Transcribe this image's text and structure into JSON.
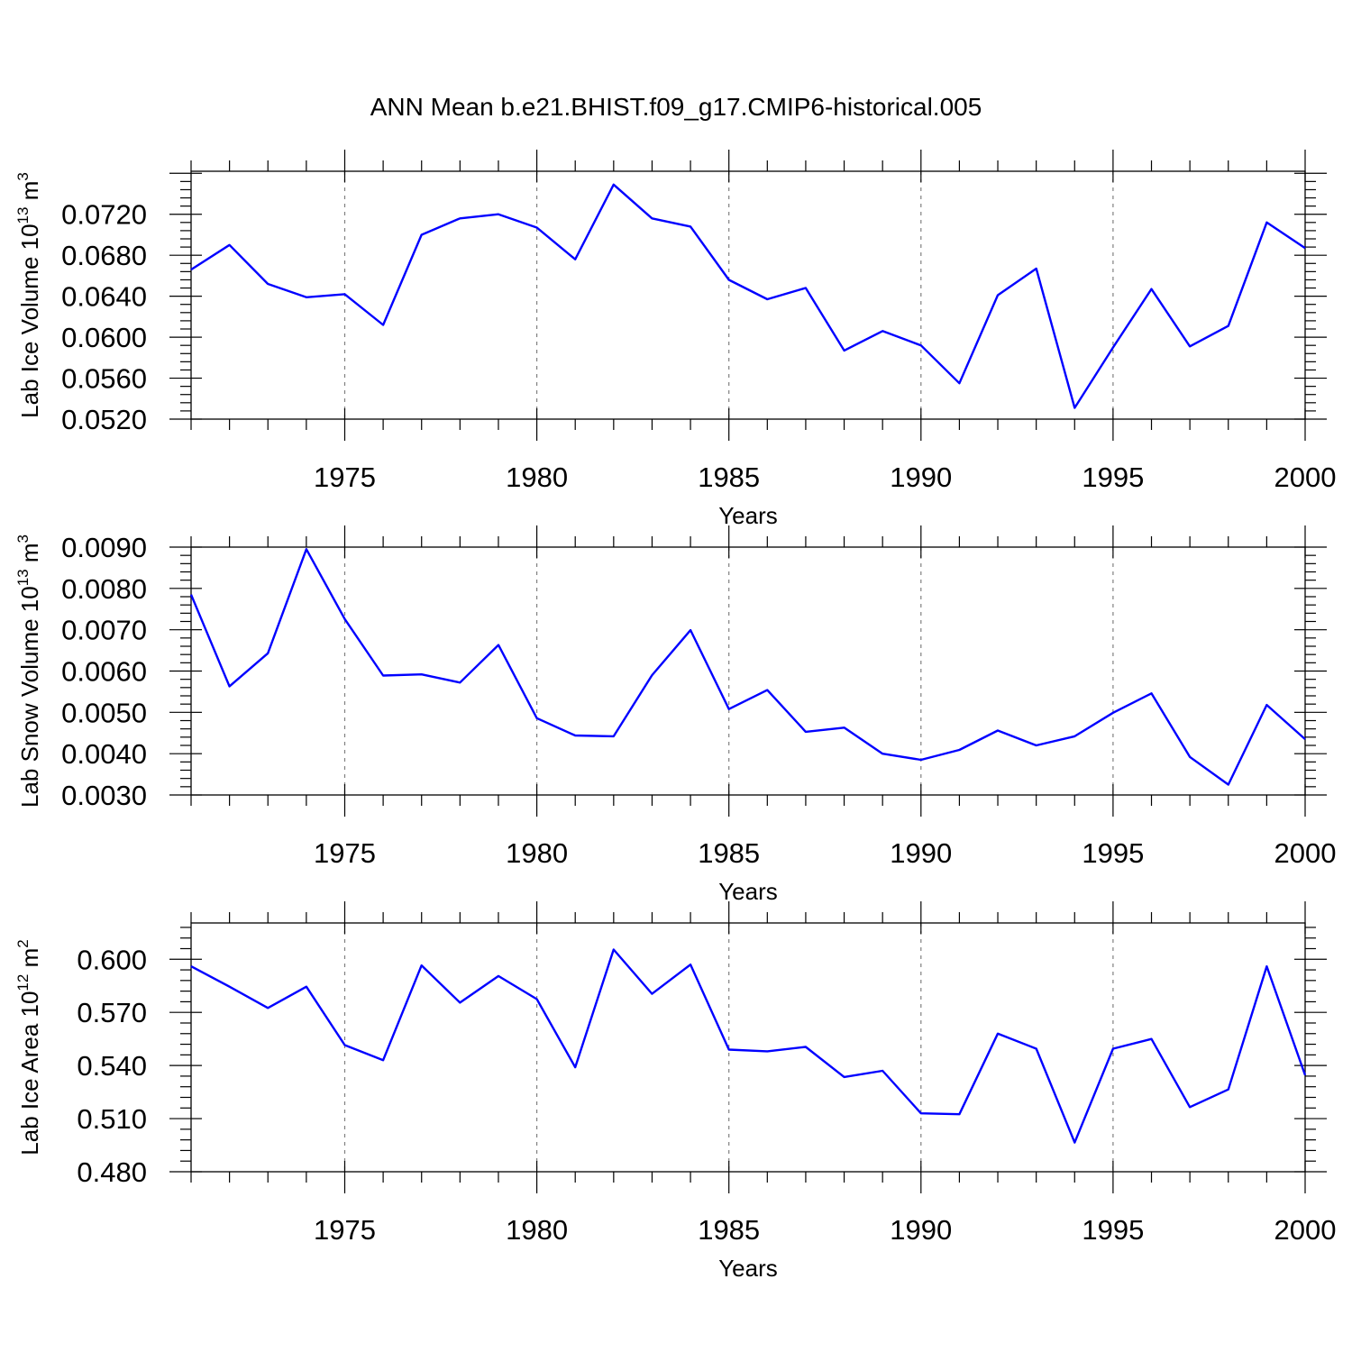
{
  "title": "ANN Mean b.e21.BHIST.f09_g17.CMIP6-historical.005",
  "colors": {
    "line": "#0000ff",
    "axis": "#000000",
    "grid": "#808080"
  },
  "chart_data": [
    {
      "type": "line",
      "ylabel": {
        "main": "Lab Ice Volume 10",
        "sup": "13",
        "unit": " m",
        "unit_sup": "3"
      },
      "xlabel": "Years",
      "xlim": [
        1971,
        2000
      ],
      "xticks": [
        1975,
        1980,
        1985,
        1990,
        1995,
        2000
      ],
      "ylim": [
        0.052,
        0.0762
      ],
      "yticks": [
        "0.0520",
        "0.0560",
        "0.0600",
        "0.0640",
        "0.0680",
        "0.0720"
      ],
      "grid": "vertical dashed",
      "x": [
        1971,
        1972,
        1973,
        1974,
        1975,
        1976,
        1977,
        1978,
        1979,
        1980,
        1981,
        1982,
        1983,
        1984,
        1985,
        1986,
        1987,
        1988,
        1989,
        1990,
        1991,
        1992,
        1993,
        1994,
        1995,
        1996,
        1997,
        1998,
        1999,
        2000
      ],
      "series": [
        {
          "name": "Lab Ice Volume",
          "values": [
            0.0666,
            0.069,
            0.0652,
            0.0639,
            0.0642,
            0.0612,
            0.07,
            0.0716,
            0.072,
            0.0707,
            0.0676,
            0.0749,
            0.0716,
            0.0708,
            0.0656,
            0.0637,
            0.0648,
            0.0587,
            0.0606,
            0.0592,
            0.0555,
            0.0641,
            0.0667,
            0.0531,
            0.059,
            0.0647,
            0.0591,
            0.0611,
            0.0712,
            0.0687
          ]
        }
      ]
    },
    {
      "type": "line",
      "ylabel": {
        "main": "Lab Snow Volume 10",
        "sup": "13",
        "unit": " m",
        "unit_sup": "3"
      },
      "xlabel": "Years",
      "xlim": [
        1971,
        2000
      ],
      "xticks": [
        1975,
        1980,
        1985,
        1990,
        1995,
        2000
      ],
      "ylim": [
        0.003,
        0.009
      ],
      "yticks": [
        "0.0030",
        "0.0040",
        "0.0050",
        "0.0060",
        "0.0070",
        "0.0080",
        "0.0090"
      ],
      "grid": "vertical dashed",
      "x": [
        1971,
        1972,
        1973,
        1974,
        1975,
        1976,
        1977,
        1978,
        1979,
        1980,
        1981,
        1982,
        1983,
        1984,
        1985,
        1986,
        1987,
        1988,
        1989,
        1990,
        1991,
        1992,
        1993,
        1994,
        1995,
        1996,
        1997,
        1998,
        1999,
        2000
      ],
      "series": [
        {
          "name": "Lab Snow Volume",
          "values": [
            0.00785,
            0.00563,
            0.00643,
            0.00895,
            0.00726,
            0.00589,
            0.00592,
            0.00572,
            0.00663,
            0.00486,
            0.00444,
            0.00442,
            0.0059,
            0.00699,
            0.00508,
            0.00554,
            0.00453,
            0.00463,
            0.004,
            0.00385,
            0.00409,
            0.00456,
            0.0042,
            0.00442,
            0.00499,
            0.00546,
            0.00392,
            0.00325,
            0.00518,
            0.00435
          ]
        }
      ]
    },
    {
      "type": "line",
      "ylabel": {
        "main": "Lab Ice Area 10",
        "sup": "12",
        "unit": " m",
        "unit_sup": "2"
      },
      "xlabel": "Years",
      "xlim": [
        1971,
        2000
      ],
      "xticks": [
        1975,
        1980,
        1985,
        1990,
        1995,
        2000
      ],
      "ylim": [
        0.48,
        0.6205
      ],
      "yticks": [
        "0.480",
        "0.510",
        "0.540",
        "0.570",
        "0.600"
      ],
      "grid": "vertical dashed",
      "x": [
        1971,
        1972,
        1973,
        1974,
        1975,
        1976,
        1977,
        1978,
        1979,
        1980,
        1981,
        1982,
        1983,
        1984,
        1985,
        1986,
        1987,
        1988,
        1989,
        1990,
        1991,
        1992,
        1993,
        1994,
        1995,
        1996,
        1997,
        1998,
        1999,
        2000
      ],
      "series": [
        {
          "name": "Lab Ice Area",
          "values": [
            0.596,
            0.5845,
            0.5725,
            0.5845,
            0.5515,
            0.543,
            0.5965,
            0.5755,
            0.5905,
            0.5775,
            0.539,
            0.6055,
            0.5805,
            0.597,
            0.549,
            0.548,
            0.5505,
            0.5335,
            0.537,
            0.513,
            0.5125,
            0.558,
            0.5495,
            0.4965,
            0.5495,
            0.555,
            0.5165,
            0.5265,
            0.596,
            0.5345
          ]
        }
      ]
    }
  ]
}
